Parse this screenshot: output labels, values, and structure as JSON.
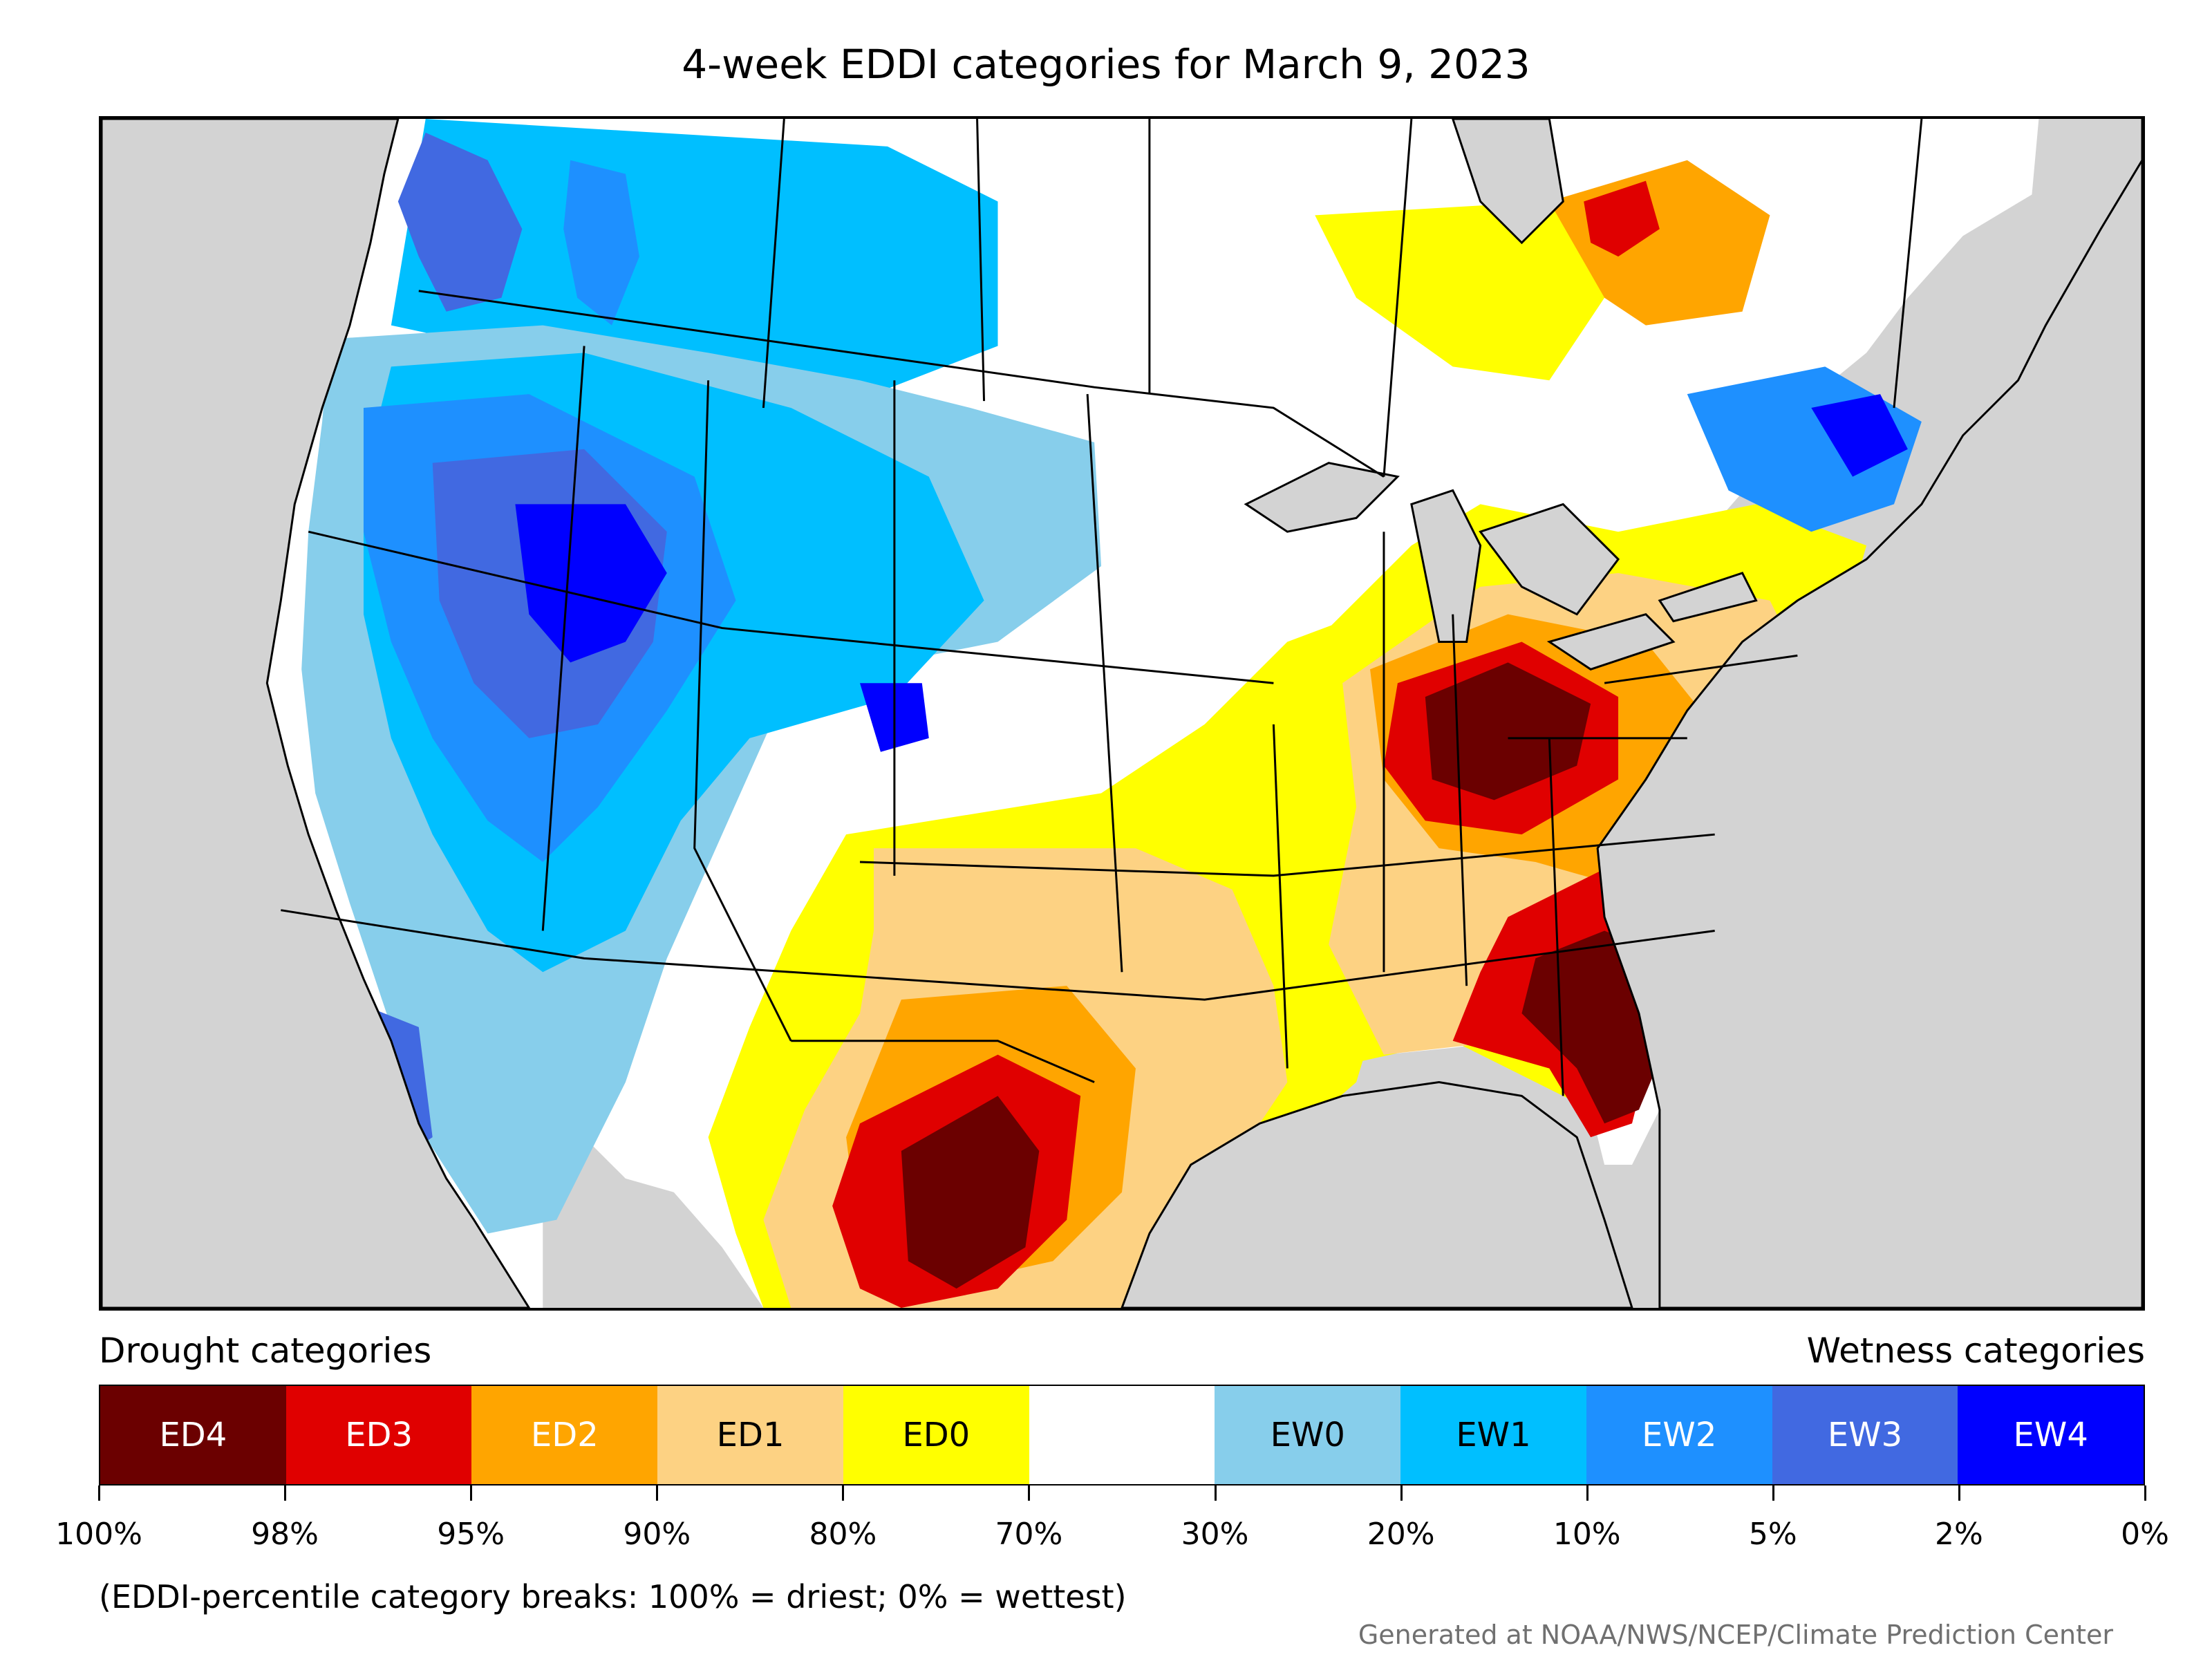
{
  "title": "4-week EDDI categories for March 9, 2023",
  "legend": {
    "drought_heading": "Drought categories",
    "wetness_heading": "Wetness categories",
    "categories": [
      {
        "label": "ED4",
        "color": "#6b0000",
        "text_color": "#ffffff"
      },
      {
        "label": "ED3",
        "color": "#e00000",
        "text_color": "#ffffff"
      },
      {
        "label": "ED2",
        "color": "#ffa500",
        "text_color": "#ffffff"
      },
      {
        "label": "ED1",
        "color": "#fdd283",
        "text_color": "#000000"
      },
      {
        "label": "ED0",
        "color": "#ffff00",
        "text_color": "#000000"
      },
      {
        "label": "",
        "color": "#ffffff",
        "text_color": "#000000"
      },
      {
        "label": "EW0",
        "color": "#87ceeb",
        "text_color": "#000000"
      },
      {
        "label": "EW1",
        "color": "#00bfff",
        "text_color": "#000000"
      },
      {
        "label": "EW2",
        "color": "#1e90ff",
        "text_color": "#ffffff"
      },
      {
        "label": "EW3",
        "color": "#4169e1",
        "text_color": "#ffffff"
      },
      {
        "label": "EW4",
        "color": "#0000ff",
        "text_color": "#ffffff"
      }
    ],
    "tick_labels": [
      "100%",
      "98%",
      "95%",
      "90%",
      "80%",
      "70%",
      "30%",
      "20%",
      "10%",
      "5%",
      "2%",
      "0%"
    ]
  },
  "note": "(EDDI-percentile category breaks: 100% = driest; 0% = wettest)",
  "credit": "Generated at NOAA/NWS/NCEP/Climate Prediction Center",
  "map": {
    "background_color": "#d3d3d3",
    "no_data_color": "#ffffff"
  }
}
